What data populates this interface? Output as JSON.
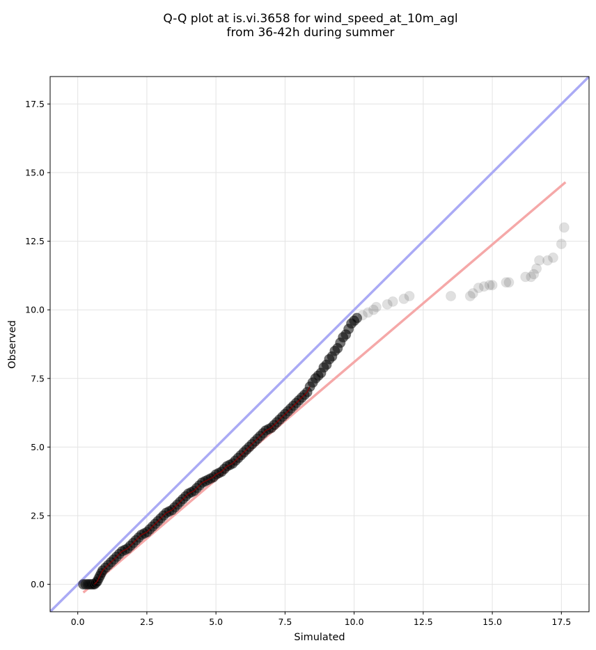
{
  "chart_data": {
    "type": "scatter",
    "title": [
      "Q-Q plot at is.vi.3658 for wind_speed_at_10m_agl",
      "from 36-42h during summer"
    ],
    "xlabel": "Simulated",
    "ylabel": "Observed",
    "xlim": [
      -1.0,
      18.5
    ],
    "ylim": [
      -1.0,
      18.5
    ],
    "x_ticks": [
      0.0,
      2.5,
      5.0,
      7.5,
      10.0,
      12.5,
      15.0,
      17.5
    ],
    "y_ticks": [
      0.0,
      2.5,
      5.0,
      7.5,
      10.0,
      12.5,
      15.0,
      17.5
    ],
    "tick_labels": [
      "0.0",
      "2.5",
      "5.0",
      "7.5",
      "10.0",
      "12.5",
      "15.0",
      "17.5"
    ],
    "grid": true,
    "colors": {
      "identity_line": "#aaaaf5",
      "fit_line": "#f5a8a8",
      "points": "#000000",
      "inner_trend": "#8b0000"
    },
    "identity_line": {
      "x": [
        -1.0,
        18.5
      ],
      "y": [
        -1.0,
        18.5
      ]
    },
    "fit_line": {
      "x": [
        0.2,
        17.65
      ],
      "y": [
        -0.3,
        14.65
      ]
    },
    "series": [
      {
        "x": [
          0.2,
          0.28,
          0.35,
          0.4,
          0.45,
          0.5,
          0.55,
          0.6,
          0.65,
          0.7,
          0.75,
          0.8,
          0.85,
          0.9,
          1.0,
          1.1,
          1.2,
          1.3,
          1.4,
          1.5,
          1.6,
          1.7,
          1.8,
          1.9,
          2.0,
          2.1,
          2.2,
          2.3,
          2.4,
          2.5,
          2.6,
          2.7,
          2.8,
          2.9,
          3.0,
          3.1,
          3.2,
          3.3,
          3.4,
          3.5,
          3.6,
          3.7,
          3.8,
          3.9,
          4.0,
          4.1,
          4.2,
          4.3,
          4.4,
          4.5,
          4.6,
          4.7,
          4.8,
          4.9,
          5.0,
          5.1,
          5.2,
          5.3,
          5.4,
          5.5,
          5.6,
          5.7,
          5.8,
          5.9,
          6.0,
          6.1,
          6.2,
          6.3,
          6.4,
          6.5,
          6.6,
          6.7,
          6.8,
          6.9,
          7.0,
          7.1,
          7.2,
          7.3,
          7.4,
          7.5,
          7.6,
          7.7,
          7.8,
          7.9,
          8.0,
          8.1,
          8.2,
          8.3,
          8.4,
          8.5,
          8.6,
          8.7,
          8.8,
          8.9,
          9.0,
          9.1,
          9.2,
          9.3,
          9.4,
          9.5,
          9.6,
          9.7,
          9.8,
          9.9,
          10.0,
          10.1,
          10.3,
          10.5,
          10.7,
          10.8,
          11.2,
          11.4,
          11.8,
          12.0,
          13.5,
          14.2,
          14.3,
          14.5,
          14.7,
          14.9,
          15.0,
          15.5,
          15.6,
          16.2,
          16.4,
          16.5,
          16.6,
          16.7,
          17.0,
          17.2,
          17.5,
          17.6
        ],
        "y": [
          0.0,
          0.0,
          0.0,
          0.0,
          0.0,
          0.0,
          0.0,
          0.0,
          0.05,
          0.1,
          0.2,
          0.3,
          0.4,
          0.5,
          0.6,
          0.7,
          0.8,
          0.9,
          1.0,
          1.1,
          1.2,
          1.25,
          1.3,
          1.4,
          1.5,
          1.6,
          1.7,
          1.8,
          1.85,
          1.9,
          2.0,
          2.1,
          2.2,
          2.3,
          2.4,
          2.5,
          2.6,
          2.65,
          2.7,
          2.8,
          2.9,
          3.0,
          3.1,
          3.2,
          3.3,
          3.35,
          3.4,
          3.5,
          3.6,
          3.7,
          3.75,
          3.8,
          3.85,
          3.9,
          4.0,
          4.05,
          4.1,
          4.2,
          4.3,
          4.35,
          4.4,
          4.5,
          4.6,
          4.7,
          4.8,
          4.9,
          5.0,
          5.1,
          5.2,
          5.3,
          5.4,
          5.5,
          5.6,
          5.65,
          5.7,
          5.8,
          5.9,
          6.0,
          6.1,
          6.2,
          6.3,
          6.4,
          6.5,
          6.6,
          6.7,
          6.8,
          6.9,
          7.0,
          7.2,
          7.35,
          7.5,
          7.6,
          7.7,
          7.9,
          8.0,
          8.2,
          8.3,
          8.5,
          8.6,
          8.8,
          9.0,
          9.1,
          9.3,
          9.5,
          9.6,
          9.7,
          9.8,
          9.9,
          10.0,
          10.1,
          10.2,
          10.3,
          10.4,
          10.5,
          10.5,
          10.5,
          10.6,
          10.8,
          10.85,
          10.9,
          10.9,
          11.0,
          11.0,
          11.2,
          11.2,
          11.3,
          11.5,
          11.8,
          11.8,
          11.9,
          12.4,
          13.0
        ]
      }
    ]
  }
}
